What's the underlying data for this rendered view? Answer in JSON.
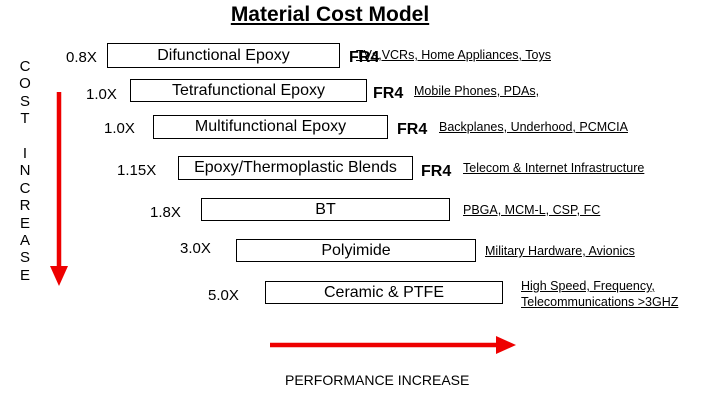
{
  "title": "Material Cost Model",
  "y_axis_letters": [
    "C",
    "O",
    "S",
    "T",
    "",
    "I",
    "N",
    "C",
    "R",
    "E",
    "A",
    "S",
    "E"
  ],
  "x_axis_label": "PERFORMANCE INCREASE",
  "colors": {
    "arrow": "#ee0000",
    "text": "#000000",
    "box_border": "#000000"
  },
  "materials": [
    {
      "multiplier": "0.8X",
      "name": "Difunctional Epoxy",
      "grade": "FR4",
      "applications": [
        "TVs,VCRs, Home Appliances, Toys"
      ]
    },
    {
      "multiplier": "1.0X",
      "name": "Tetrafunctional Epoxy",
      "grade": "FR4",
      "applications": [
        "Mobile Phones, PDAs,"
      ]
    },
    {
      "multiplier": "1.0X",
      "name": "Multifunctional Epoxy",
      "grade": "FR4",
      "applications": [
        "Backplanes, Underhood, PCMCIA"
      ]
    },
    {
      "multiplier": "1.15X",
      "name": "Epoxy/Thermoplastic Blends",
      "grade": "FR4",
      "applications": [
        "Telecom & Internet Infrastructure"
      ]
    },
    {
      "multiplier": "1.8X",
      "name": "BT",
      "grade": "",
      "applications": [
        "PBGA, MCM-L, CSP, FC"
      ]
    },
    {
      "multiplier": "3.0X",
      "name": "Polyimide",
      "grade": "",
      "applications": [
        "Military Hardware, Avionics"
      ]
    },
    {
      "multiplier": "5.0X",
      "name": "Ceramic & PTFE",
      "grade": "",
      "applications": [
        "High Speed, Frequency,",
        "Telecommunications >3GHZ"
      ]
    }
  ]
}
